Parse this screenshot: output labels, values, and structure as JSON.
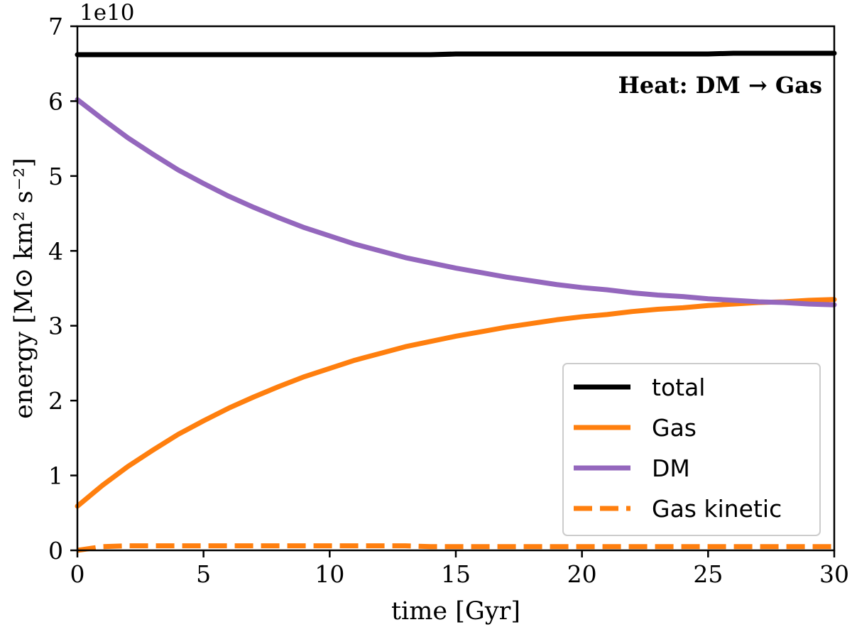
{
  "chart_data": {
    "type": "line",
    "xlabel": "time [Gyr]",
    "ylabel": "energy [M⊙ km² s⁻²]",
    "y_offset_label": "1e10",
    "annotation": "Heat: DM → Gas",
    "xlim": [
      0,
      30
    ],
    "ylim": [
      0,
      7
    ],
    "x_ticks": [
      0,
      5,
      10,
      15,
      20,
      25,
      30
    ],
    "x_tick_labels": [
      "0",
      "5",
      "10",
      "15",
      "20",
      "25",
      "30"
    ],
    "y_ticks": [
      0,
      1,
      2,
      3,
      4,
      5,
      6,
      7
    ],
    "y_tick_labels": [
      "0",
      "1",
      "2",
      "3",
      "4",
      "5",
      "6",
      "7"
    ],
    "grid": false,
    "legend_position": "lower-right",
    "x": [
      0,
      1,
      2,
      3,
      4,
      5,
      6,
      7,
      8,
      9,
      10,
      11,
      12,
      13,
      14,
      15,
      16,
      17,
      18,
      19,
      20,
      21,
      22,
      23,
      24,
      25,
      26,
      27,
      28,
      29,
      30
    ],
    "series": [
      {
        "name": "total",
        "color": "#000000",
        "style": "solid",
        "values": [
          6.62,
          6.62,
          6.62,
          6.62,
          6.62,
          6.62,
          6.62,
          6.62,
          6.62,
          6.62,
          6.62,
          6.62,
          6.62,
          6.62,
          6.62,
          6.63,
          6.63,
          6.63,
          6.63,
          6.63,
          6.63,
          6.63,
          6.63,
          6.63,
          6.63,
          6.63,
          6.64,
          6.64,
          6.64,
          6.64,
          6.64
        ]
      },
      {
        "name": "Gas",
        "color": "#ff7f0e",
        "style": "solid",
        "values": [
          0.59,
          0.87,
          1.12,
          1.34,
          1.55,
          1.73,
          1.9,
          2.05,
          2.19,
          2.32,
          2.43,
          2.54,
          2.63,
          2.72,
          2.79,
          2.86,
          2.92,
          2.98,
          3.03,
          3.08,
          3.12,
          3.15,
          3.19,
          3.22,
          3.24,
          3.27,
          3.29,
          3.31,
          3.32,
          3.34,
          3.35
        ]
      },
      {
        "name": "DM",
        "color": "#9467bd",
        "style": "solid",
        "values": [
          6.02,
          5.76,
          5.51,
          5.29,
          5.08,
          4.9,
          4.73,
          4.58,
          4.44,
          4.31,
          4.2,
          4.09,
          4.0,
          3.91,
          3.84,
          3.77,
          3.71,
          3.65,
          3.6,
          3.55,
          3.51,
          3.48,
          3.44,
          3.41,
          3.39,
          3.36,
          3.34,
          3.32,
          3.31,
          3.29,
          3.28
        ]
      },
      {
        "name": "Gas kinetic",
        "color": "#ff7f0e",
        "style": "dashed",
        "values": [
          0.0,
          0.05,
          0.06,
          0.06,
          0.06,
          0.06,
          0.06,
          0.06,
          0.06,
          0.06,
          0.06,
          0.06,
          0.06,
          0.06,
          0.05,
          0.05,
          0.05,
          0.05,
          0.05,
          0.05,
          0.05,
          0.05,
          0.05,
          0.05,
          0.05,
          0.05,
          0.05,
          0.05,
          0.05,
          0.05,
          0.05
        ]
      }
    ]
  }
}
